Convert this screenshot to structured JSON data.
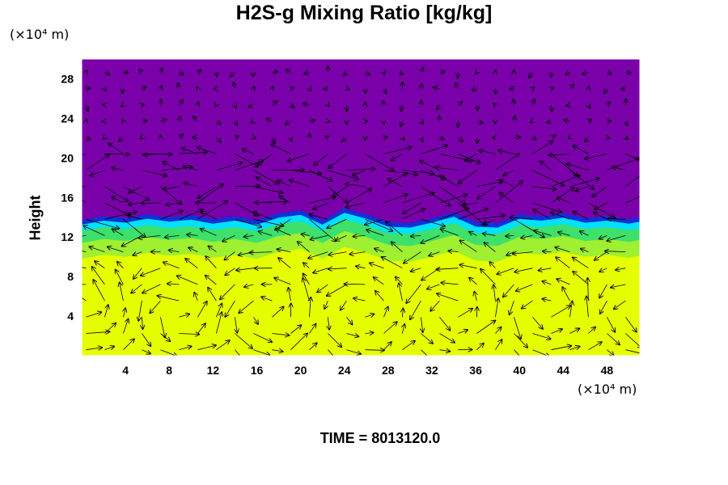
{
  "title": "H2S-g Mixing Ratio [kg/kg]",
  "y_unit": "(×10⁴ m)",
  "x_unit": "(×10⁴ m)",
  "ylabel": "Height",
  "time_label": "TIME = 8013120.0",
  "chart_data": {
    "type": "heatmap",
    "title": "H2S-g Mixing Ratio [kg/kg]",
    "xlabel": "",
    "ylabel": "Height",
    "x_ticks": [
      4,
      8,
      12,
      16,
      20,
      24,
      28,
      32,
      36,
      40,
      44,
      48
    ],
    "y_ticks": [
      4,
      8,
      12,
      16,
      20,
      24,
      28
    ],
    "xlim": [
      0,
      51
    ],
    "ylim": [
      0,
      30
    ],
    "grid": false,
    "legend": "none",
    "overlay": "velocity vector arrows",
    "colors": {
      "background_field": "#7a00aa",
      "lower_field": "#e6ff00",
      "transition_green": "#3de06a",
      "transition_cyan": "#00e0ff",
      "transition_blue": "#1030d8"
    },
    "interface_height_profile": {
      "x": [
        0,
        2,
        4,
        6,
        8,
        10,
        12,
        14,
        16,
        18,
        20,
        22,
        24,
        26,
        28,
        30,
        32,
        34,
        36,
        38,
        40,
        42,
        44,
        46,
        48,
        50,
        51
      ],
      "y": [
        12.8,
        13.2,
        13.0,
        13.4,
        13.1,
        13.3,
        12.9,
        13.2,
        12.8,
        13.5,
        13.8,
        12.8,
        14.0,
        13.4,
        12.6,
        12.5,
        13.0,
        13.6,
        12.6,
        12.5,
        13.4,
        13.2,
        13.5,
        13.0,
        13.2,
        12.9,
        13.1
      ]
    },
    "time": 8013120.0
  }
}
